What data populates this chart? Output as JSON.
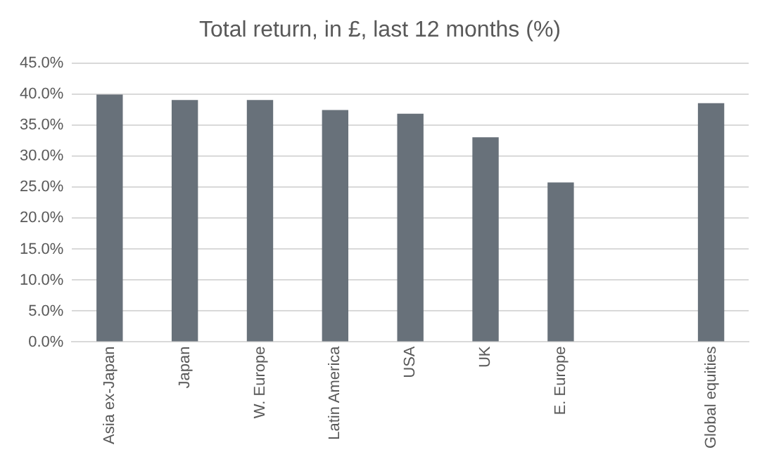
{
  "chart_data": {
    "type": "bar",
    "title": "Total return, in £, last 12 months (%)",
    "categories": [
      "Asia ex-Japan",
      "Japan",
      "W. Europe",
      "Latin America",
      "USA",
      "UK",
      "E. Europe",
      null,
      "Global equities"
    ],
    "values": [
      40.0,
      39.1,
      39.1,
      37.5,
      36.9,
      33.1,
      25.8,
      null,
      38.6
    ],
    "color": "#68717a",
    "ylim": [
      0,
      45
    ],
    "yticks": [
      {
        "value": 0,
        "label": "0.0%"
      },
      {
        "value": 5,
        "label": "5.0%"
      },
      {
        "value": 10,
        "label": "10.0%"
      },
      {
        "value": 15,
        "label": "15.0%"
      },
      {
        "value": 20,
        "label": "20.0%"
      },
      {
        "value": 25,
        "label": "25.0%"
      },
      {
        "value": 30,
        "label": "30.0%"
      },
      {
        "value": 35,
        "label": "35.0%"
      },
      {
        "value": 40,
        "label": "40.0%"
      },
      {
        "value": 45,
        "label": "45.0%"
      }
    ],
    "grid": "y",
    "legend": false
  }
}
